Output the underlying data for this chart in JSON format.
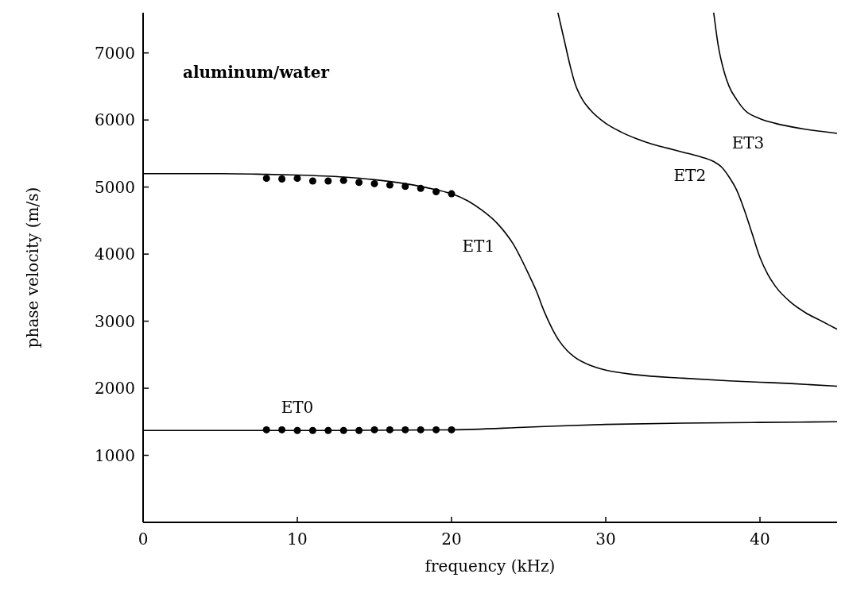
{
  "chart_data": {
    "type": "line",
    "xlabel": "frequency (kHz)",
    "ylabel": "phase velocity (m/s)",
    "xlim": [
      0,
      45
    ],
    "ylim": [
      0,
      7600
    ],
    "xticks": [
      0,
      10,
      20,
      30,
      40
    ],
    "yticks": [
      1000,
      2000,
      3000,
      4000,
      5000,
      6000,
      7000
    ],
    "grid": false,
    "line_style": "solid",
    "marker": "none",
    "series": [
      {
        "color": "#000000",
        "x": [
          0,
          10,
          20,
          25,
          30,
          35,
          40,
          45
        ],
        "values": [
          1370,
          1370,
          1380,
          1420,
          1460,
          1480,
          1490,
          1500
        ]
      },
      {
        "color": "#000000",
        "x": [
          0,
          5,
          8,
          10,
          13,
          15,
          17,
          19,
          20,
          21,
          22,
          23,
          24,
          25,
          25.5,
          26,
          26.5,
          27,
          27.5,
          28,
          29,
          30,
          32,
          35,
          38,
          40,
          42,
          45
        ],
        "values": [
          5200,
          5200,
          5190,
          5180,
          5150,
          5110,
          5050,
          4960,
          4900,
          4800,
          4650,
          4450,
          4150,
          3700,
          3450,
          3150,
          2900,
          2700,
          2560,
          2460,
          2340,
          2270,
          2200,
          2150,
          2110,
          2090,
          2070,
          2030
        ]
      },
      {
        "color": "#000000",
        "x": [
          26.9,
          27.3,
          27.7,
          28,
          28.5,
          29,
          30,
          31,
          32,
          33,
          34,
          35,
          36,
          37,
          37.5,
          38,
          38.5,
          39,
          39.5,
          40,
          40.5,
          41,
          42,
          43,
          44,
          45
        ],
        "values": [
          7600,
          7200,
          6800,
          6550,
          6300,
          6150,
          5950,
          5820,
          5720,
          5640,
          5580,
          5520,
          5460,
          5380,
          5300,
          5150,
          4950,
          4650,
          4300,
          3950,
          3700,
          3520,
          3280,
          3120,
          3000,
          2880
        ]
      },
      {
        "color": "#000000",
        "x": [
          37,
          37.3,
          37.7,
          38,
          38.5,
          39,
          40,
          41,
          42,
          43,
          44,
          45
        ],
        "values": [
          7600,
          7100,
          6700,
          6500,
          6300,
          6150,
          6020,
          5950,
          5900,
          5860,
          5830,
          5800
        ]
      },
      {
        "type": "scatter",
        "marker": "circle",
        "color": "#000000",
        "x": [
          8,
          9,
          10,
          11,
          12,
          13,
          14,
          15,
          16,
          17,
          18,
          19,
          20
        ],
        "values": [
          5130,
          5120,
          5130,
          5090,
          5090,
          5100,
          5070,
          5050,
          5030,
          5010,
          4980,
          4930,
          4900
        ]
      },
      {
        "type": "scatter",
        "marker": "circle",
        "color": "#000000",
        "x": [
          8,
          9,
          10,
          11,
          12,
          13,
          14,
          15,
          16,
          17,
          18,
          19,
          20
        ],
        "values": [
          1380,
          1380,
          1370,
          1370,
          1370,
          1370,
          1370,
          1380,
          1380,
          1380,
          1380,
          1380,
          1380
        ]
      }
    ],
    "annotations": [
      "aluminum/water",
      {
        "text": "ET0",
        "x": 10,
        "y": 1370
      },
      {
        "text": "ET1",
        "x": 22,
        "y": 4650
      },
      {
        "text": "ET2",
        "x": 37,
        "y": 5380
      },
      {
        "text": "ET3",
        "x": 40,
        "y": 6020
      }
    ]
  }
}
